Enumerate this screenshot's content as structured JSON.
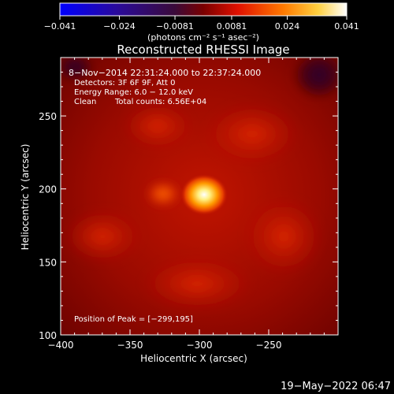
{
  "colorbar": {
    "tick_values": [
      -0.041,
      -0.024,
      -0.0081,
      0.0081,
      0.024,
      0.041
    ],
    "tick_labels": [
      "−0.041",
      "−0.024",
      "−0.0081",
      "0.0081",
      "0.024",
      "0.041"
    ],
    "units": "(photons cm⁻² s⁻¹ asec⁻²)"
  },
  "chart_data": {
    "type": "heatmap",
    "title": "Reconstructed RHESSI Image",
    "xlabel": "Heliocentric X (arcsec)",
    "ylabel": "Heliocentric Y (arcsec)",
    "xlim": [
      -400,
      -200
    ],
    "ylim": [
      100,
      290
    ],
    "x_ticks": [
      -400,
      -350,
      -300,
      -250
    ],
    "x_tick_labels": [
      "−400",
      "−350",
      "−300",
      "−250"
    ],
    "y_ticks": [
      100,
      150,
      200,
      250
    ],
    "y_tick_labels": [
      "100",
      "150",
      "200",
      "250"
    ],
    "colorscale": "rhessi-heat",
    "value_range": [
      -0.041,
      0.041
    ],
    "peak": [
      -299,
      195
    ],
    "annotations": {
      "time_range": "8−Nov−2014 22:31:24.000 to 22:37:24.000",
      "detectors": "Detectors: 3F 6F 9F, Att 0",
      "energy": "Energy Range: 6.0 − 12.0 keV",
      "clean_label": "Clean",
      "counts": "Total counts: 6.56E+04",
      "peak_text": "Position of Peak = [−299,195]"
    }
  },
  "footer": {
    "timestamp": "19−May−2022 06:47"
  }
}
